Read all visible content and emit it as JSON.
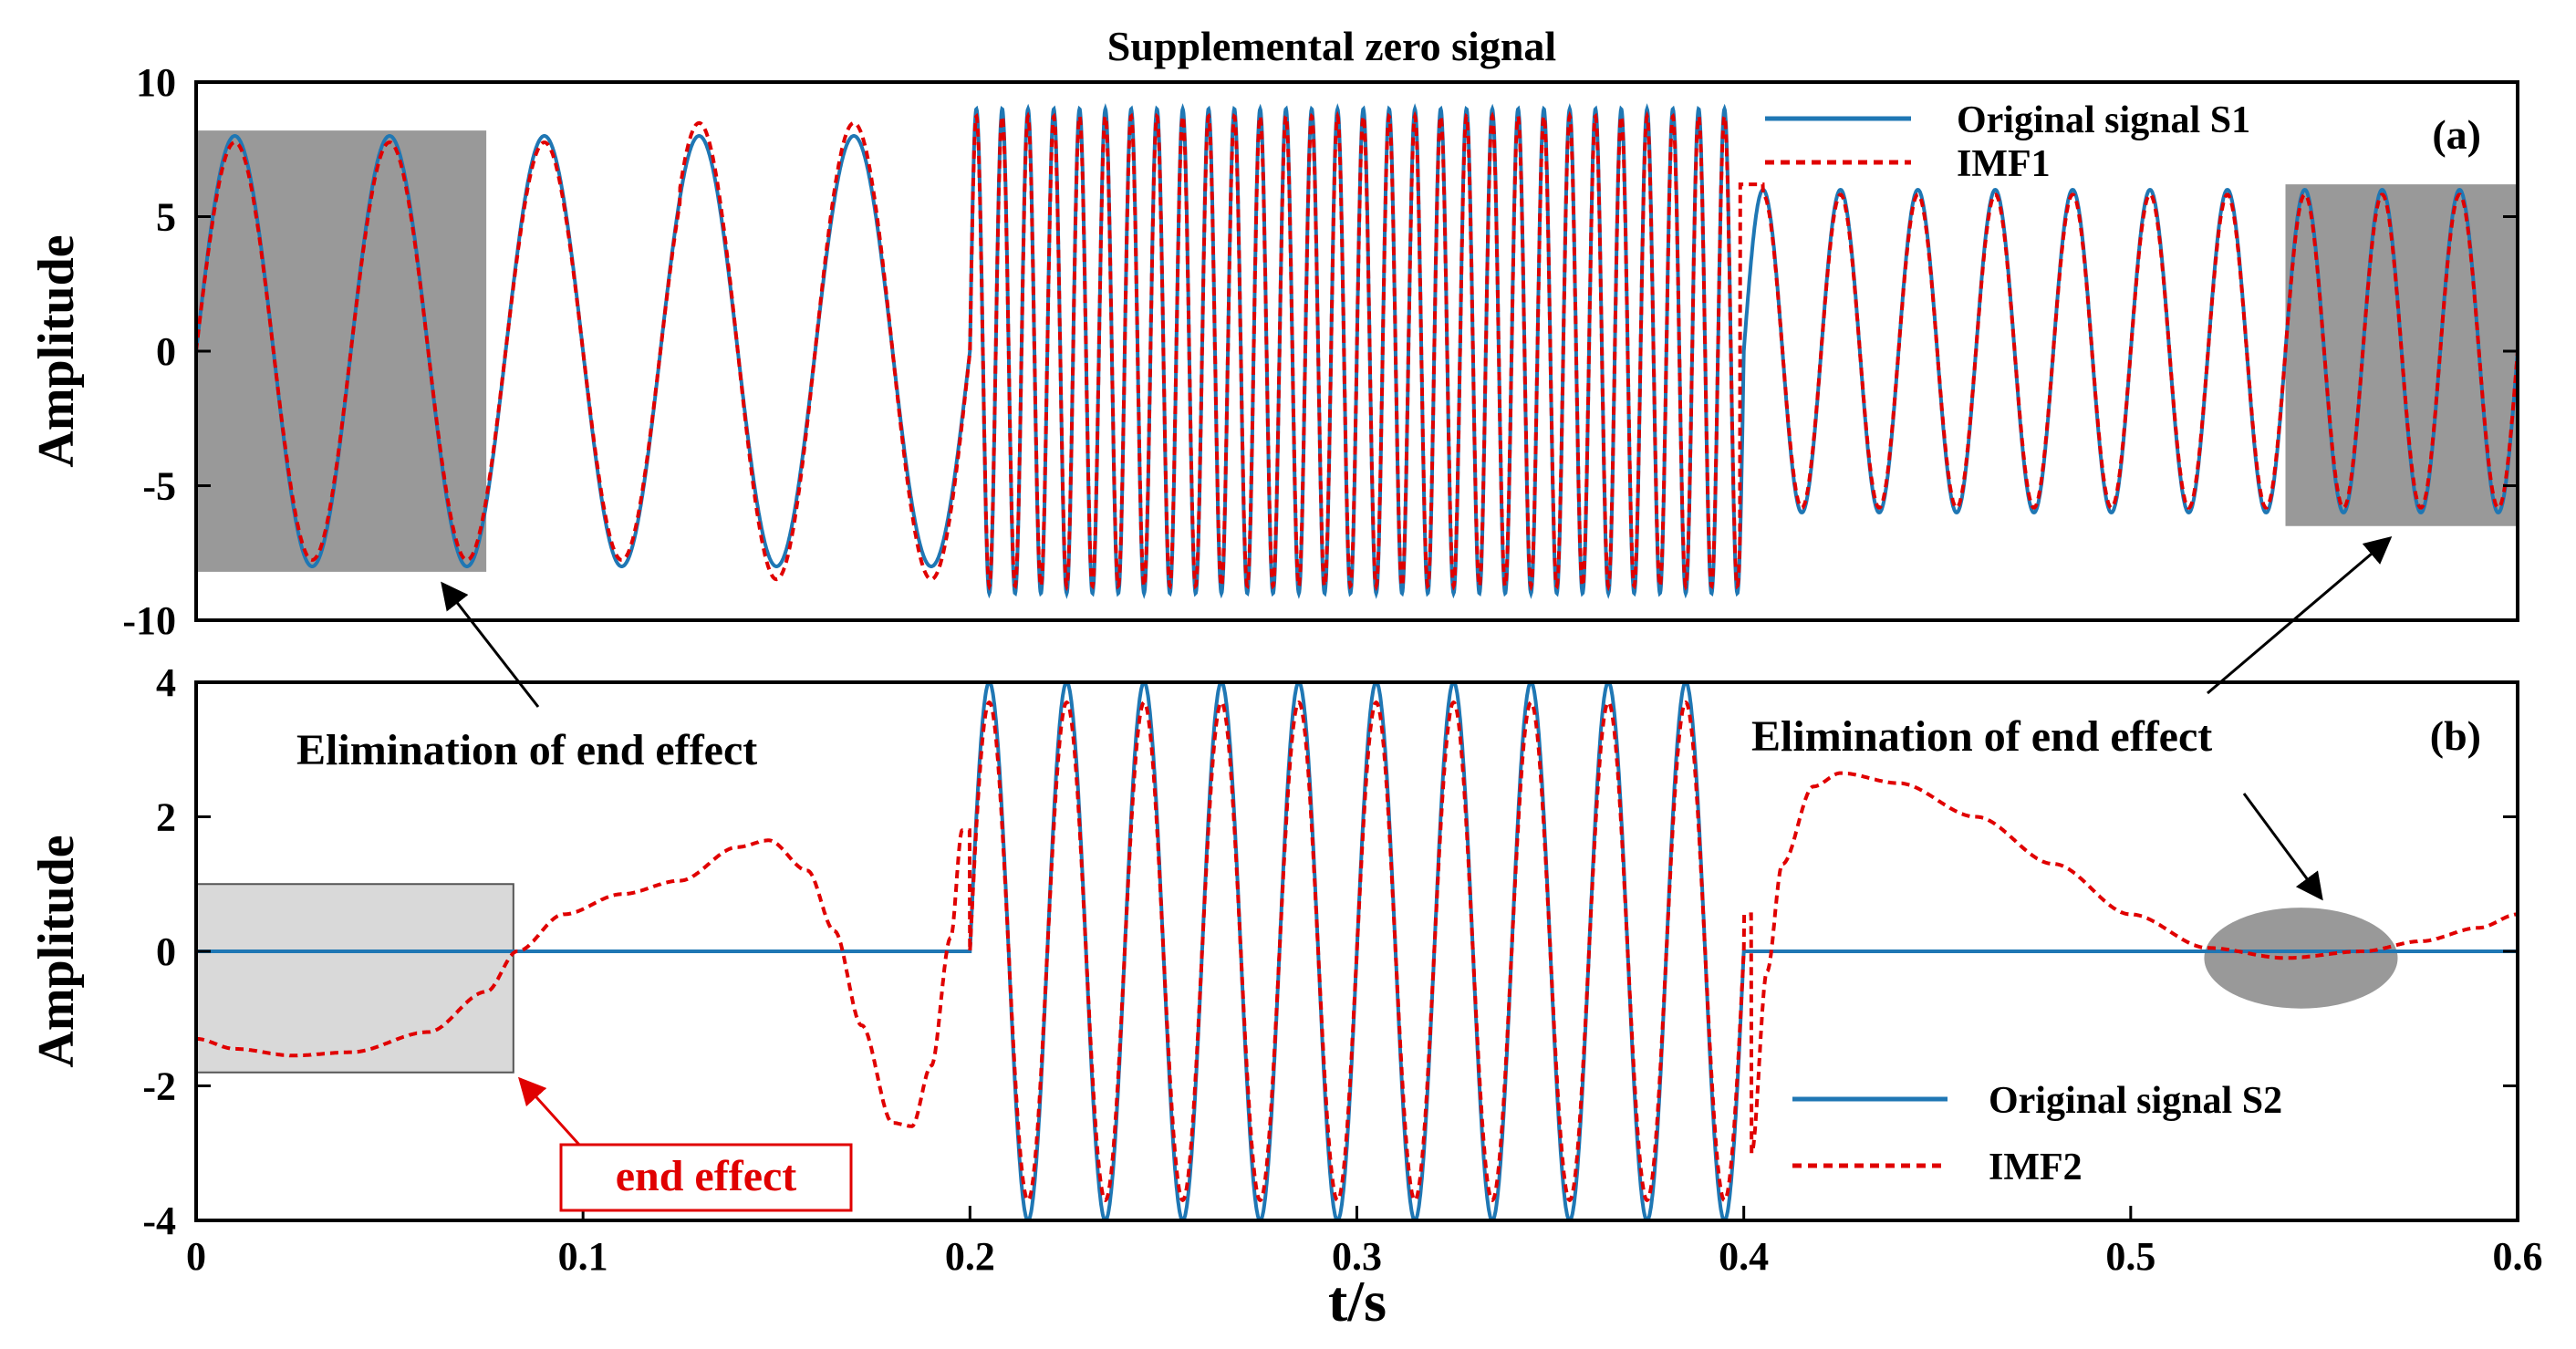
{
  "chart_data": [
    {
      "panel": "a",
      "type": "line",
      "title": "Supplemental zero signal",
      "panel_label": "(a)",
      "xlabel": "",
      "ylabel": "Amplitude",
      "xlim": [
        0,
        0.6
      ],
      "ylim": [
        -10,
        10
      ],
      "yticks": [
        "10",
        "5",
        "0",
        "-5",
        "-10"
      ],
      "yticks_values": [
        10,
        5,
        0,
        -5,
        -10
      ],
      "series": [
        {
          "name": "Original signal S1",
          "color": "#1f77b4",
          "style": "solid",
          "segments": [
            {
              "t_start": 0,
              "t_end": 0.2,
              "frequency_hz": 25,
              "amplitude": 8
            },
            {
              "t_start": 0.2,
              "t_end": 0.4,
              "frequency_hz": 150,
              "amplitude": 9
            },
            {
              "t_start": 0.4,
              "t_end": 0.6,
              "frequency_hz": 50,
              "amplitude": 6
            }
          ]
        },
        {
          "name": "IMF1",
          "color": "#e00000",
          "style": "dashed",
          "note": "closely tracks S1 with small deviations near transitions"
        }
      ],
      "shaded_regions": [
        {
          "t_start": 0,
          "t_end": 0.075,
          "y_min": -8.2,
          "y_max": 8.2,
          "color": "#999999"
        },
        {
          "t_start": 0.54,
          "t_end": 0.6,
          "y_min": -6.5,
          "y_max": 6.2,
          "color": "#999999"
        }
      ]
    },
    {
      "panel": "b",
      "type": "line",
      "panel_label": "(b)",
      "xlabel": "t/s",
      "ylabel": "Amplitude",
      "xlim": [
        0,
        0.6
      ],
      "ylim": [
        -4,
        4
      ],
      "xticks": [
        "0",
        "0.1",
        "0.2",
        "0.3",
        "0.4",
        "0.5",
        "0.6"
      ],
      "xticks_values": [
        0,
        0.1,
        0.2,
        0.3,
        0.4,
        0.5,
        0.6
      ],
      "yticks": [
        "4",
        "2",
        "0",
        "-2",
        "-4"
      ],
      "yticks_values": [
        4,
        2,
        0,
        -2,
        -4
      ],
      "series": [
        {
          "name": "Original signal S2",
          "color": "#1f77b4",
          "style": "solid",
          "segments": [
            {
              "t_start": 0,
              "t_end": 0.2,
              "value": 0
            },
            {
              "t_start": 0.2,
              "t_end": 0.4,
              "frequency_hz": 50,
              "amplitude": 4
            },
            {
              "t_start": 0.4,
              "t_end": 0.6,
              "value": 0
            }
          ]
        },
        {
          "name": "IMF2",
          "color": "#e00000",
          "style": "dashed",
          "points": [
            [
              0,
              -1.3
            ],
            [
              0.01,
              -1.45
            ],
            [
              0.025,
              -1.55
            ],
            [
              0.04,
              -1.5
            ],
            [
              0.06,
              -1.2
            ],
            [
              0.075,
              -0.6
            ],
            [
              0.083,
              0
            ],
            [
              0.095,
              0.55
            ],
            [
              0.11,
              0.85
            ],
            [
              0.125,
              1.05
            ],
            [
              0.14,
              1.55
            ],
            [
              0.148,
              1.65
            ],
            [
              0.158,
              1.2
            ],
            [
              0.165,
              0.3
            ],
            [
              0.172,
              -1.1
            ],
            [
              0.18,
              -2.55
            ],
            [
              0.185,
              -2.6
            ],
            [
              0.19,
              -1.7
            ],
            [
              0.195,
              0.2
            ],
            [
              0.198,
              1.8
            ]
          ],
          "points_tail": [
            [
              0.402,
              -3.0
            ],
            [
              0.406,
              -0.3
            ],
            [
              0.41,
              1.3
            ],
            [
              0.418,
              2.45
            ],
            [
              0.425,
              2.65
            ],
            [
              0.44,
              2.5
            ],
            [
              0.46,
              2.0
            ],
            [
              0.48,
              1.3
            ],
            [
              0.5,
              0.55
            ],
            [
              0.52,
              0.05
            ],
            [
              0.54,
              -0.1
            ],
            [
              0.56,
              0.0
            ],
            [
              0.575,
              0.15
            ],
            [
              0.59,
              0.35
            ],
            [
              0.6,
              0.55
            ]
          ],
          "active_amplitude": 3.7
        }
      ],
      "shaded_regions": [
        {
          "t_start": 0,
          "t_end": 0.082,
          "y_min": -1.8,
          "y_max": 1.0,
          "color": "#d9d9d9"
        }
      ],
      "ellipse": {
        "t_center": 0.544,
        "y_center": -0.1,
        "t_radius": 0.025,
        "y_radius": 0.75,
        "color": "#999999"
      }
    }
  ],
  "annotations": {
    "elimination_left": "Elimination of end effect",
    "elimination_right": "Elimination of end effect",
    "end_effect": "end effect"
  }
}
